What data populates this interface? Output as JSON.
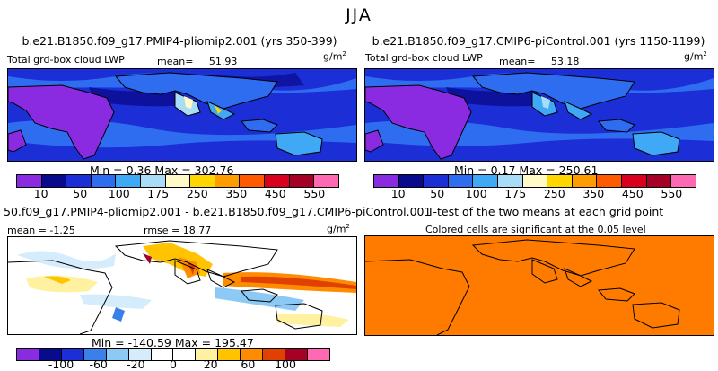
{
  "season": "JJA",
  "panels": {
    "top_left": {
      "title": "b.e21.B1850.f09_g17.PMIP4-pliomip2.001 (yrs 350-399)",
      "variable": "Total grd-box cloud LWP",
      "mean_label": "mean=",
      "mean": "51.93",
      "units": "g/m",
      "units_exp": "2",
      "minmax_label": "Min =   0.36 Max = 302.76"
    },
    "top_right": {
      "title": "b.e21.B1850.f09_g17.CMIP6-piControl.001 (yrs 1150-1199)",
      "variable": "Total grd-box cloud LWP",
      "mean_label": "mean=",
      "mean": "53.18",
      "units": "g/m",
      "units_exp": "2",
      "minmax_label": "Min =   0.17 Max = 250.61"
    },
    "bottom_left": {
      "title": "50.f09_g17.PMIP4-pliomip2.001 - b.e21.B1850.f09_g17.CMIP6-piControl.001",
      "mean_text": "mean = -1.25",
      "rmse_text": "rmse = 18.77",
      "units": "g/m",
      "units_exp": "2",
      "minmax_label": "Min = -140.59 Max = 195.47"
    },
    "bottom_right": {
      "title": "T-test of the two means at each grid point",
      "subtitle": "Colored cells are significant at the 0.05 level"
    }
  },
  "colorbars": {
    "abs": {
      "colors": [
        "#8a2be2",
        "#0a0a8c",
        "#1c2ed6",
        "#2f6df0",
        "#3fa9f5",
        "#a8dcf7",
        "#fffac8",
        "#ffd600",
        "#ff9c00",
        "#ff5a00",
        "#d8001c",
        "#a50026",
        "#ff69b4"
      ],
      "tick_labels": [
        "10",
        "50",
        "100",
        "175",
        "250",
        "350",
        "450",
        "550"
      ]
    },
    "diff": {
      "colors": [
        "#8a2be2",
        "#0a0a8c",
        "#1c2ed6",
        "#3b7fe8",
        "#8ccaf5",
        "#d4ecfb",
        "#ffffff",
        "#ffffff",
        "#fff1a0",
        "#ffc300",
        "#ff8c00",
        "#e04000",
        "#a50026",
        "#ff69b4"
      ],
      "tick_labels": [
        "-100",
        "-60",
        "-20",
        "0",
        "20",
        "60",
        "100"
      ]
    }
  },
  "colors": {
    "ocean_low": "#1c2ed6",
    "ocean_mid": "#2f6df0",
    "ttest_fill": "#ff7b00",
    "diff_bg": "#ffffff"
  }
}
